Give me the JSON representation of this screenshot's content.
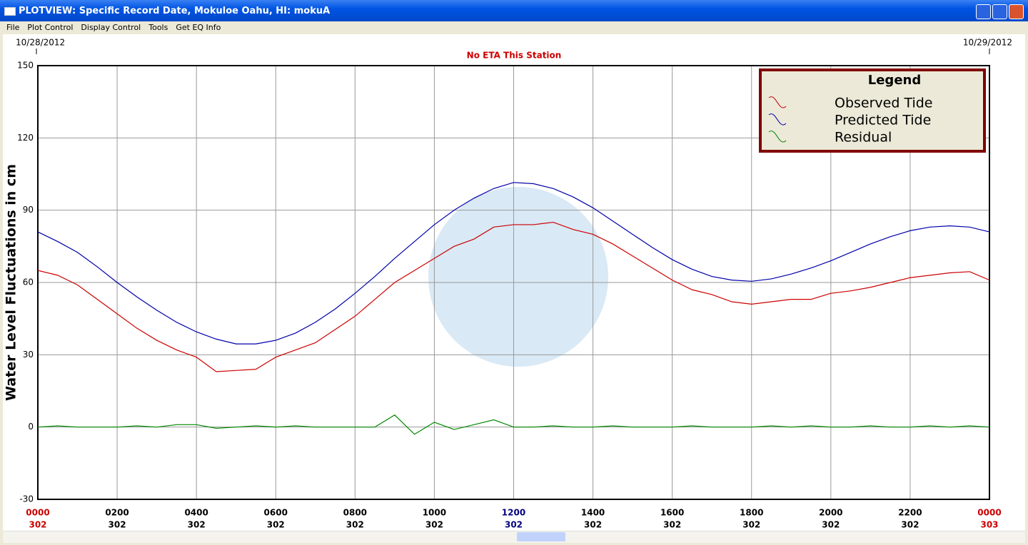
{
  "window": {
    "title": "PLOTVIEW: Specific Record Date, Mokuloe Oahu, HI: mokuA",
    "menu": [
      "File",
      "Plot Control",
      "Display Control",
      "Tools",
      "Get EQ Info"
    ]
  },
  "chart_data": {
    "type": "line",
    "title": "No ETA This Station",
    "start_date": "10/28/2012",
    "end_date": "10/29/2012",
    "y_label": "Water Level Fluctuations in cm",
    "legend_title": "Legend",
    "x": [
      0,
      0.5,
      1,
      1.5,
      2,
      2.5,
      3,
      3.5,
      4,
      4.5,
      5,
      5.5,
      6,
      6.5,
      7,
      7.5,
      8,
      8.5,
      9,
      9.5,
      10,
      10.5,
      11,
      11.5,
      12,
      12.5,
      13,
      13.5,
      14,
      14.5,
      15,
      15.5,
      16,
      16.5,
      17,
      17.5,
      18,
      18.5,
      19,
      19.5,
      20,
      20.5,
      21,
      21.5,
      22,
      22.5,
      23,
      23.5,
      24
    ],
    "series": [
      {
        "name": "Observed Tide",
        "color": "#cc0000",
        "values": [
          65,
          63,
          59,
          53,
          47,
          41,
          36,
          32,
          29,
          23,
          23.5,
          24,
          29,
          32,
          35,
          40.5,
          46,
          53,
          60,
          65,
          70,
          75,
          78,
          83,
          84,
          84,
          85,
          82,
          80,
          76,
          71,
          66,
          61,
          57,
          55,
          52,
          51,
          52,
          53,
          53,
          55.5,
          56.5,
          58,
          60,
          62,
          63,
          64,
          64.5,
          61
        ]
      },
      {
        "name": "Predicted Tide",
        "color": "#0000aa",
        "values": [
          81,
          77,
          72.5,
          66.5,
          60,
          54,
          48.5,
          43.5,
          39.5,
          36.5,
          34.5,
          34.5,
          36,
          39,
          43.5,
          49,
          55.5,
          62.5,
          70,
          77,
          84,
          90,
          95,
          99,
          101.5,
          101,
          99,
          95.5,
          91,
          85.5,
          80,
          74.5,
          69.5,
          65.5,
          62.5,
          61,
          60.5,
          61.5,
          63.5,
          66,
          69,
          72.5,
          76,
          79,
          81.5,
          83,
          83.5,
          83,
          81
        ]
      },
      {
        "name": "Residual",
        "color": "#008800",
        "values": [
          0,
          0.5,
          0,
          0,
          0,
          0.5,
          0,
          1,
          1,
          -0.5,
          0,
          0.5,
          0,
          0.5,
          0,
          0,
          0,
          0,
          5,
          -3,
          2,
          -1,
          1,
          3,
          0,
          0,
          0.5,
          0,
          0,
          0.5,
          0,
          0,
          0,
          0.5,
          0,
          0,
          0,
          0.5,
          0,
          0.5,
          0,
          0,
          0.5,
          0,
          0,
          0.5,
          0,
          0.5,
          0
        ]
      }
    ],
    "xlim": [
      0,
      24
    ],
    "xticks": [
      {
        "value": 0,
        "label": "0000"
      },
      {
        "value": 2,
        "label": "0200"
      },
      {
        "value": 4,
        "label": "0400"
      },
      {
        "value": 6,
        "label": "0600"
      },
      {
        "value": 8,
        "label": "0800"
      },
      {
        "value": 10,
        "label": "1000"
      },
      {
        "value": 12,
        "label": "1200"
      },
      {
        "value": 14,
        "label": "1400"
      },
      {
        "value": 16,
        "label": "1600"
      },
      {
        "value": 18,
        "label": "1800"
      },
      {
        "value": 20,
        "label": "2000"
      },
      {
        "value": 22,
        "label": "2200"
      },
      {
        "value": 24,
        "label": "0000"
      }
    ],
    "xtick_days": [
      "302",
      "302",
      "302",
      "302",
      "302",
      "302",
      "302",
      "302",
      "302",
      "302",
      "302",
      "302",
      "303"
    ],
    "xtick_label_colors": [
      "#cc0000",
      "#000000",
      "#000000",
      "#000000",
      "#000000",
      "#000000",
      "#000080",
      "#000000",
      "#000000",
      "#000000",
      "#000000",
      "#000000",
      "#cc0000"
    ],
    "ylim": [
      -30,
      150
    ],
    "yticks": [
      150,
      120,
      90,
      60,
      30,
      0,
      -30
    ],
    "grid": true
  }
}
